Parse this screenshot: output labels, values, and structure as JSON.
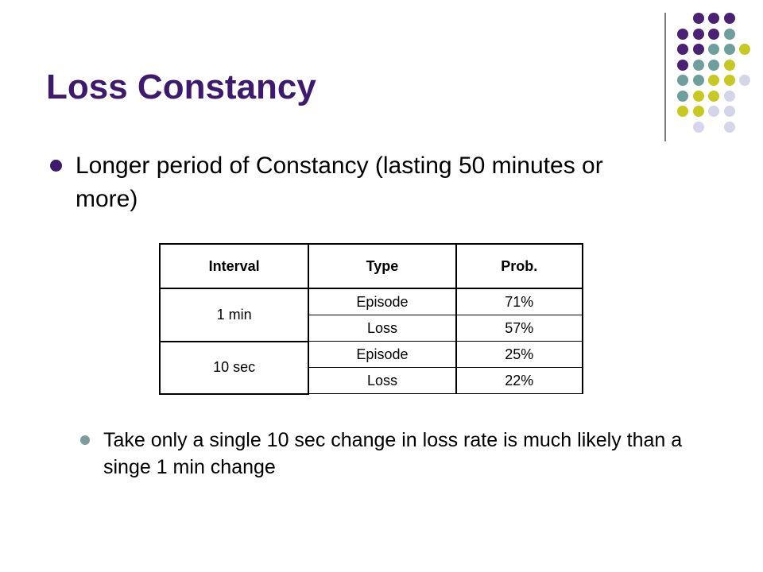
{
  "slide": {
    "title": "Loss Constancy",
    "bullets": [
      "Longer period of Constancy (lasting 50 minutes or more)",
      "Take only a single 10 sec change in loss rate is much likely than a singe 1 min change"
    ]
  },
  "table": {
    "headers": [
      "Interval",
      "Type",
      "Prob."
    ],
    "groups": [
      {
        "interval": "1 min",
        "rows": [
          {
            "type": "Episode",
            "prob": "71%"
          },
          {
            "type": "Loss",
            "prob": "57%"
          }
        ]
      },
      {
        "interval": "10 sec",
        "rows": [
          {
            "type": "Episode",
            "prob": "25%"
          },
          {
            "type": "Loss",
            "prob": "22%"
          }
        ]
      }
    ]
  },
  "decoration": {
    "dot_colors": {
      "purple": "#4b2173",
      "teal": "#6f9f9c",
      "olive": "#c8c822",
      "lavender": "#d5d5e9"
    },
    "dot_rows": [
      [
        "",
        "purple",
        "purple",
        "purple",
        ""
      ],
      [
        "purple",
        "purple",
        "purple",
        "teal",
        ""
      ],
      [
        "purple",
        "purple",
        "teal",
        "teal",
        "olive"
      ],
      [
        "purple",
        "teal",
        "teal",
        "olive",
        ""
      ],
      [
        "teal",
        "teal",
        "olive",
        "olive",
        "lavender"
      ],
      [
        "teal",
        "olive",
        "olive",
        "lavender",
        ""
      ],
      [
        "olive",
        "olive",
        "lavender",
        "lavender",
        ""
      ],
      [
        "",
        "lavender",
        "",
        "lavender",
        ""
      ]
    ],
    "bullet_colors": [
      "#3d1a6e",
      "#7a9c9a"
    ],
    "divider_color": "#7a7a7a"
  }
}
